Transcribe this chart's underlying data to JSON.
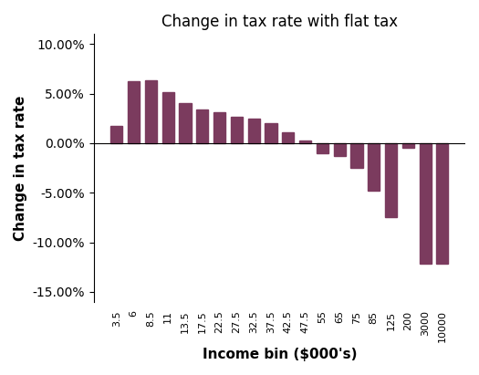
{
  "title": "Change in tax rate with flat tax",
  "xlabel": "Income bin ($000's)",
  "ylabel": "Change in tax rate",
  "categories": [
    "3.5",
    "6",
    "8.5",
    "11",
    "13.5",
    "17.5",
    "22.5",
    "27.5",
    "32.5",
    "37.5",
    "42.5",
    "47.5",
    "55",
    "65",
    "75",
    "85",
    "125",
    "200",
    "3000",
    "10000"
  ],
  "values": [
    0.017,
    0.062,
    0.063,
    0.051,
    0.04,
    0.034,
    0.031,
    0.027,
    0.025,
    0.02,
    0.011,
    0.003,
    -0.01,
    -0.013,
    -0.025,
    -0.048,
    -0.075,
    -0.005,
    -0.122,
    -0.122
  ],
  "bar_color": "#7B3B5E",
  "ylim": [
    -0.16,
    0.11
  ],
  "yticks": [
    -0.15,
    -0.1,
    -0.05,
    0.0,
    0.05,
    0.1
  ],
  "background_color": "#ffffff",
  "title_fontsize": 12,
  "axis_label_fontsize": 11
}
